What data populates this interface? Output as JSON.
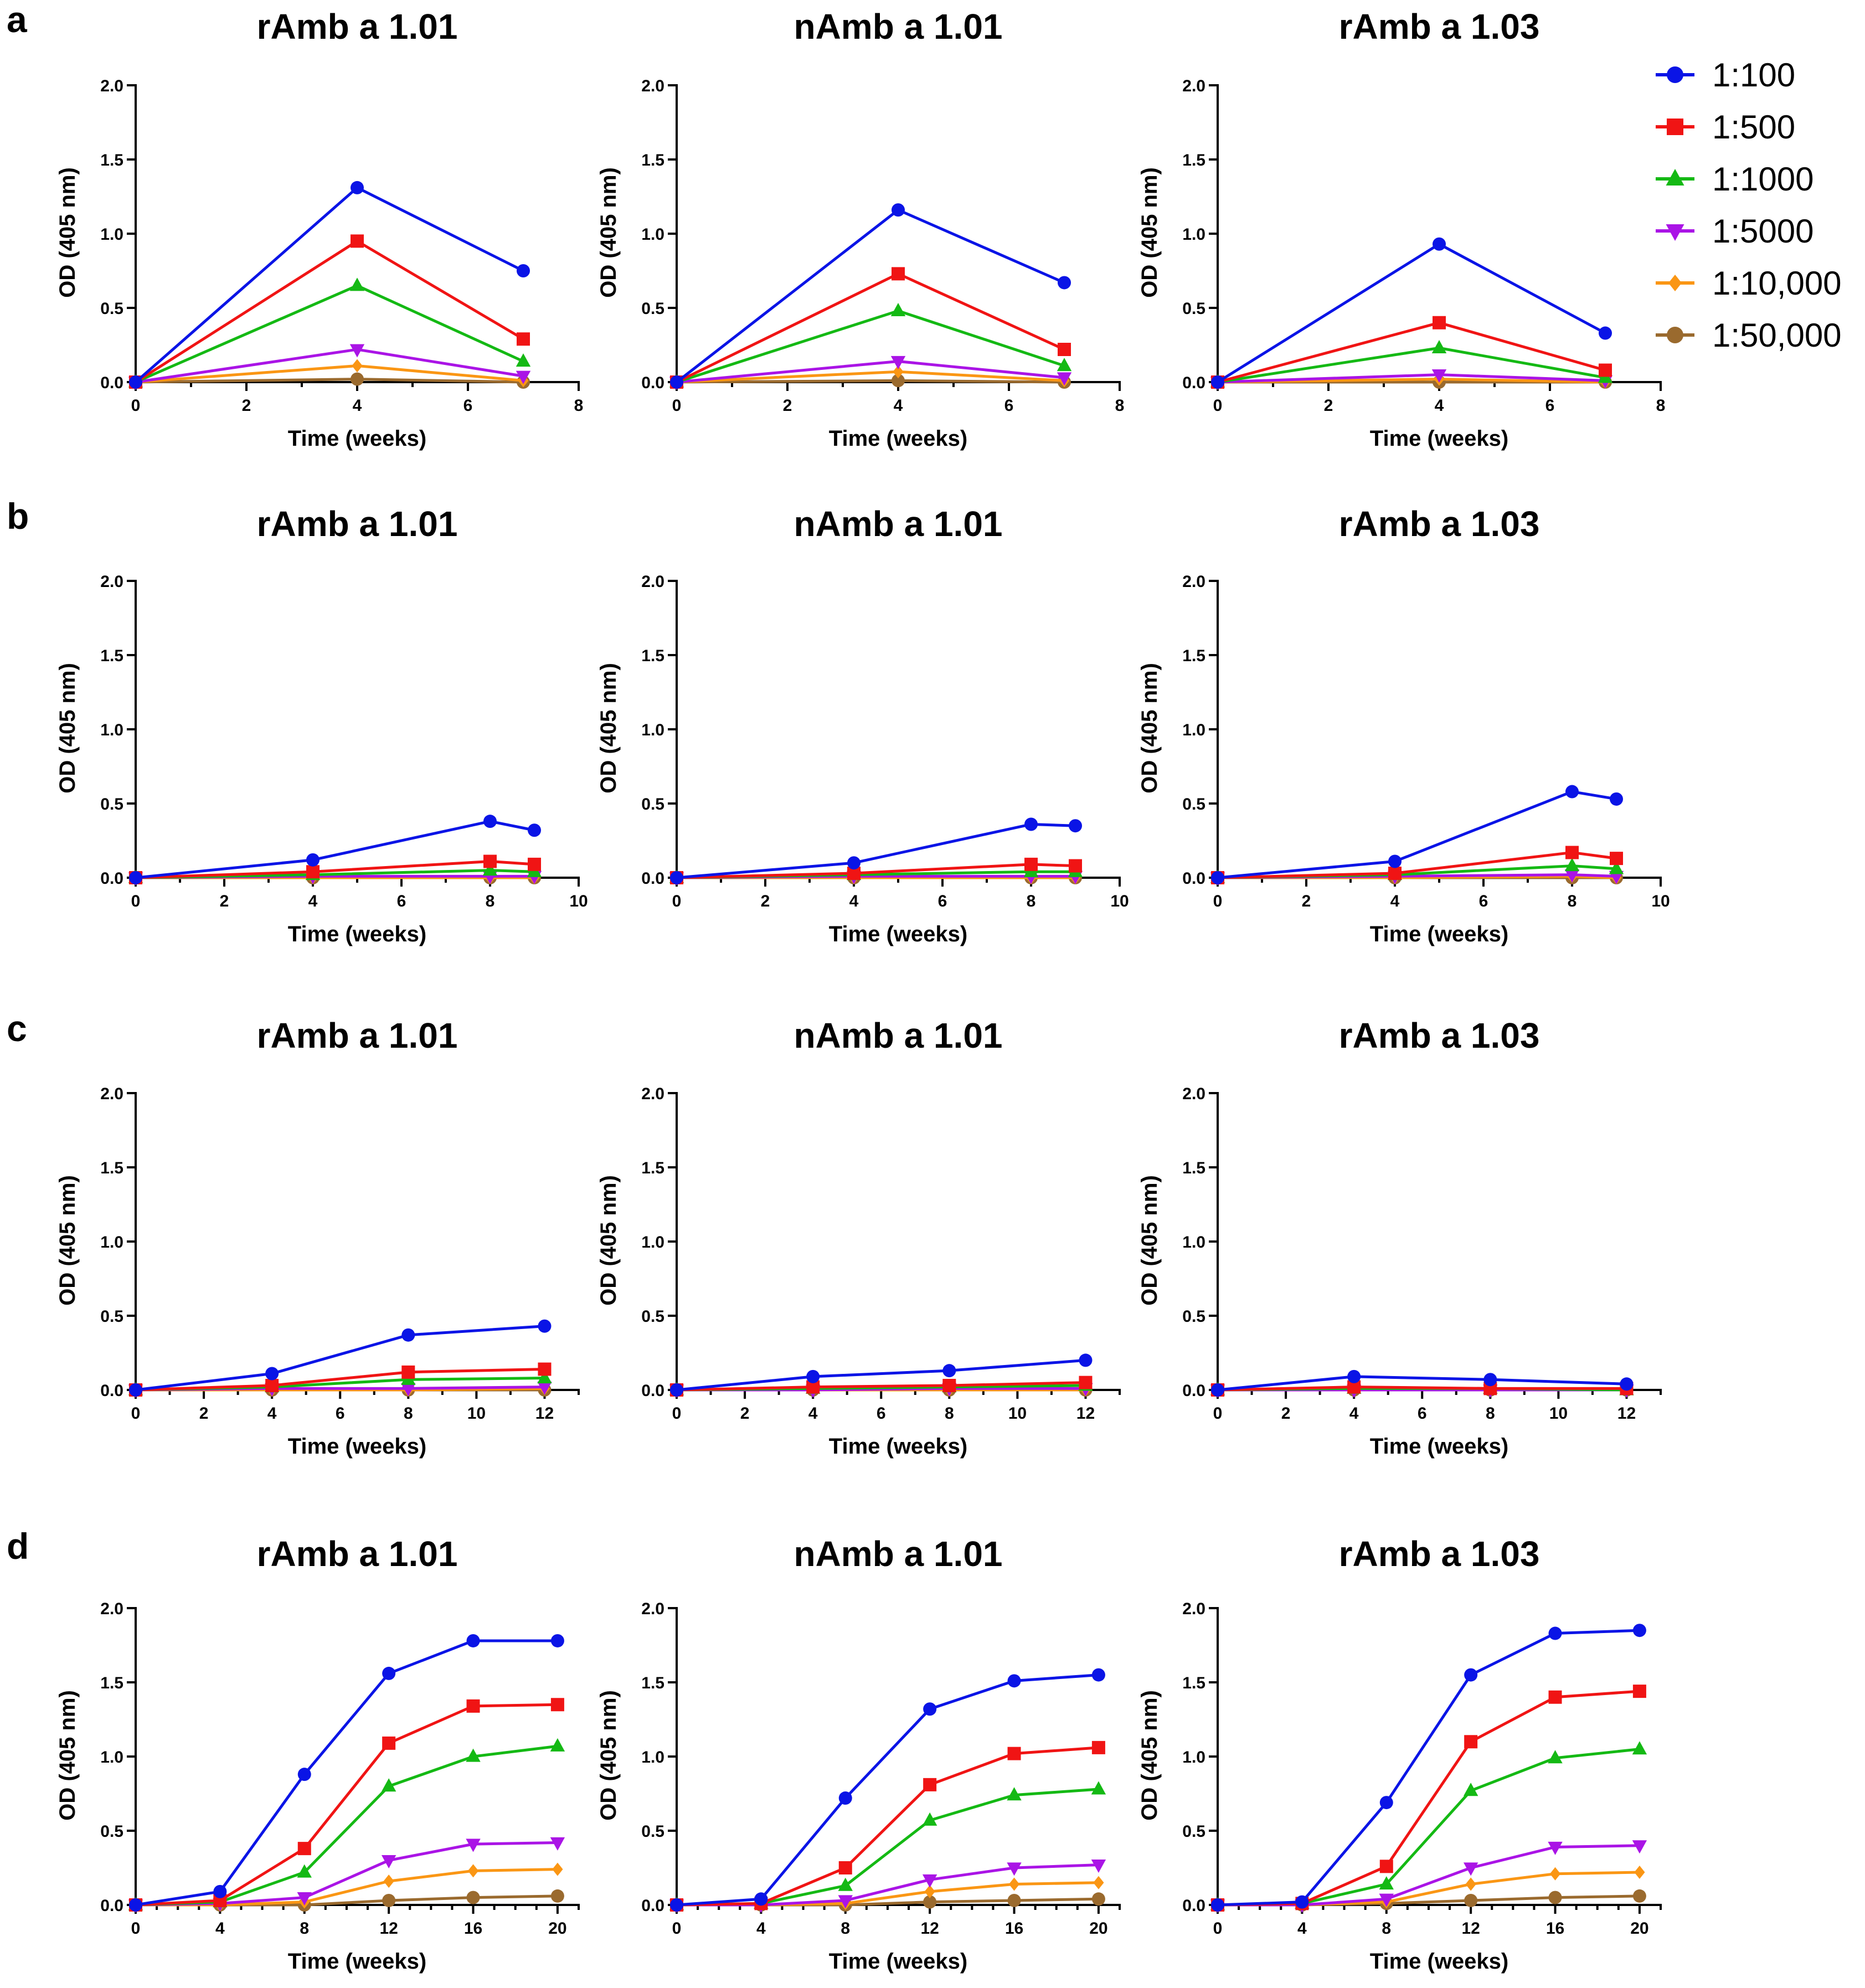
{
  "legend": {
    "entries": [
      {
        "label": "1:100",
        "color": "#0a14e6",
        "marker": "circle"
      },
      {
        "label": "1:500",
        "color": "#f01414",
        "marker": "square"
      },
      {
        "label": "1:1000",
        "color": "#14b914",
        "marker": "triangle-up"
      },
      {
        "label": "1:5000",
        "color": "#aa14e6",
        "marker": "triangle-down"
      },
      {
        "label": "1:10,000",
        "color": "#fa9614",
        "marker": "diamond"
      },
      {
        "label": "1:50,000",
        "color": "#9a6a2e",
        "marker": "circle"
      }
    ]
  },
  "rows": [
    {
      "letter": "a"
    },
    {
      "letter": "b"
    },
    {
      "letter": "c"
    },
    {
      "letter": "d"
    }
  ],
  "chart_data": [
    {
      "id": "a1",
      "row": "a",
      "type": "line",
      "title": "rAmb a 1.01",
      "xlabel": "Time (weeks)",
      "ylabel": "OD (405 nm)",
      "xlim": [
        0,
        8
      ],
      "xticks": [
        0,
        2,
        4,
        6,
        8
      ],
      "ylim": [
        0,
        2.0
      ],
      "yticks": [
        0.0,
        0.5,
        1.0,
        1.5,
        2.0
      ],
      "x": [
        0,
        4,
        7
      ],
      "series": [
        {
          "name": "1:100",
          "values": [
            0,
            1.31,
            0.75
          ]
        },
        {
          "name": "1:500",
          "values": [
            0,
            0.95,
            0.29
          ]
        },
        {
          "name": "1:1000",
          "values": [
            0,
            0.65,
            0.14
          ]
        },
        {
          "name": "1:5000",
          "values": [
            0,
            0.22,
            0.04
          ]
        },
        {
          "name": "1:10,000",
          "values": [
            0,
            0.11,
            0.01
          ]
        },
        {
          "name": "1:50,000",
          "values": [
            0,
            0.02,
            0.0
          ]
        }
      ]
    },
    {
      "id": "a2",
      "row": "a",
      "type": "line",
      "title": "nAmb a 1.01",
      "xlabel": "Time (weeks)",
      "ylabel": "OD (405 nm)",
      "xlim": [
        0,
        8
      ],
      "xticks": [
        0,
        2,
        4,
        6,
        8
      ],
      "ylim": [
        0,
        2.0
      ],
      "yticks": [
        0.0,
        0.5,
        1.0,
        1.5,
        2.0
      ],
      "x": [
        0,
        4,
        7
      ],
      "series": [
        {
          "name": "1:100",
          "values": [
            0,
            1.16,
            0.67
          ]
        },
        {
          "name": "1:500",
          "values": [
            0,
            0.73,
            0.22
          ]
        },
        {
          "name": "1:1000",
          "values": [
            0,
            0.48,
            0.11
          ]
        },
        {
          "name": "1:5000",
          "values": [
            0,
            0.14,
            0.03
          ]
        },
        {
          "name": "1:10,000",
          "values": [
            0,
            0.07,
            0.01
          ]
        },
        {
          "name": "1:50,000",
          "values": [
            0,
            0.01,
            0.0
          ]
        }
      ]
    },
    {
      "id": "a3",
      "row": "a",
      "type": "line",
      "title": "rAmb a 1.03",
      "xlabel": "Time (weeks)",
      "ylabel": "OD (405 nm)",
      "xlim": [
        0,
        8
      ],
      "xticks": [
        0,
        2,
        4,
        6,
        8
      ],
      "ylim": [
        0,
        2.0
      ],
      "yticks": [
        0.0,
        0.5,
        1.0,
        1.5,
        2.0
      ],
      "x": [
        0,
        4,
        7
      ],
      "series": [
        {
          "name": "1:100",
          "values": [
            0,
            0.93,
            0.33
          ]
        },
        {
          "name": "1:500",
          "values": [
            0,
            0.4,
            0.08
          ]
        },
        {
          "name": "1:1000",
          "values": [
            0,
            0.23,
            0.03
          ]
        },
        {
          "name": "1:5000",
          "values": [
            0,
            0.05,
            0.01
          ]
        },
        {
          "name": "1:10,000",
          "values": [
            0,
            0.02,
            0.0
          ]
        },
        {
          "name": "1:50,000",
          "values": [
            0,
            0.0,
            0.0
          ]
        }
      ]
    },
    {
      "id": "b1",
      "row": "b",
      "type": "line",
      "title": "rAmb a 1.01",
      "xlabel": "Time (weeks)",
      "ylabel": "OD (405 nm)",
      "xlim": [
        0,
        10
      ],
      "xticks": [
        0,
        2,
        4,
        6,
        8,
        10
      ],
      "ylim": [
        0,
        2.0
      ],
      "yticks": [
        0.0,
        0.5,
        1.0,
        1.5,
        2.0
      ],
      "x": [
        0,
        4,
        8,
        9
      ],
      "series": [
        {
          "name": "1:100",
          "values": [
            0,
            0.12,
            0.38,
            0.32
          ]
        },
        {
          "name": "1:500",
          "values": [
            0,
            0.04,
            0.11,
            0.09
          ]
        },
        {
          "name": "1:1000",
          "values": [
            0,
            0.02,
            0.05,
            0.04
          ]
        },
        {
          "name": "1:5000",
          "values": [
            0,
            0.01,
            0.01,
            0.01
          ]
        },
        {
          "name": "1:10,000",
          "values": [
            0,
            0.0,
            0.0,
            0.0
          ]
        },
        {
          "name": "1:50,000",
          "values": [
            0,
            0.0,
            0.0,
            0.0
          ]
        }
      ]
    },
    {
      "id": "b2",
      "row": "b",
      "type": "line",
      "title": "nAmb a 1.01",
      "xlabel": "Time (weeks)",
      "ylabel": "OD (405 nm)",
      "xlim": [
        0,
        10
      ],
      "xticks": [
        0,
        2,
        4,
        6,
        8,
        10
      ],
      "ylim": [
        0,
        2.0
      ],
      "yticks": [
        0.0,
        0.5,
        1.0,
        1.5,
        2.0
      ],
      "x": [
        0,
        4,
        8,
        9
      ],
      "series": [
        {
          "name": "1:100",
          "values": [
            0,
            0.1,
            0.36,
            0.35
          ]
        },
        {
          "name": "1:500",
          "values": [
            0,
            0.03,
            0.09,
            0.08
          ]
        },
        {
          "name": "1:1000",
          "values": [
            0,
            0.02,
            0.04,
            0.04
          ]
        },
        {
          "name": "1:5000",
          "values": [
            0,
            0.01,
            0.01,
            0.01
          ]
        },
        {
          "name": "1:10,000",
          "values": [
            0,
            0.0,
            0.0,
            0.0
          ]
        },
        {
          "name": "1:50,000",
          "values": [
            0,
            0.0,
            0.0,
            0.0
          ]
        }
      ]
    },
    {
      "id": "b3",
      "row": "b",
      "type": "line",
      "title": "rAmb a 1.03",
      "xlabel": "Time (weeks)",
      "ylabel": "OD (405 nm)",
      "xlim": [
        0,
        10
      ],
      "xticks": [
        0,
        2,
        4,
        6,
        8,
        10
      ],
      "ylim": [
        0,
        2.0
      ],
      "yticks": [
        0.0,
        0.5,
        1.0,
        1.5,
        2.0
      ],
      "x": [
        0,
        4,
        8,
        9
      ],
      "series": [
        {
          "name": "1:100",
          "values": [
            0,
            0.11,
            0.58,
            0.53
          ]
        },
        {
          "name": "1:500",
          "values": [
            0,
            0.03,
            0.17,
            0.13
          ]
        },
        {
          "name": "1:1000",
          "values": [
            0,
            0.02,
            0.08,
            0.06
          ]
        },
        {
          "name": "1:5000",
          "values": [
            0,
            0.01,
            0.02,
            0.01
          ]
        },
        {
          "name": "1:10,000",
          "values": [
            0,
            0.0,
            0.01,
            0.0
          ]
        },
        {
          "name": "1:50,000",
          "values": [
            0,
            0.0,
            0.0,
            0.0
          ]
        }
      ]
    },
    {
      "id": "c1",
      "row": "c",
      "type": "line",
      "title": "rAmb a 1.01",
      "xlabel": "Time (weeks)",
      "ylabel": "OD (405 nm)",
      "xlim": [
        0,
        13
      ],
      "xticks": [
        0,
        2,
        4,
        6,
        8,
        10,
        12
      ],
      "ylim": [
        0,
        2.0
      ],
      "yticks": [
        0.0,
        0.5,
        1.0,
        1.5,
        2.0
      ],
      "x": [
        0,
        4,
        8,
        12
      ],
      "series": [
        {
          "name": "1:100",
          "values": [
            0,
            0.11,
            0.37,
            0.43
          ]
        },
        {
          "name": "1:500",
          "values": [
            0,
            0.03,
            0.12,
            0.14
          ]
        },
        {
          "name": "1:1000",
          "values": [
            0,
            0.02,
            0.07,
            0.08
          ]
        },
        {
          "name": "1:5000",
          "values": [
            0,
            0.01,
            0.01,
            0.02
          ]
        },
        {
          "name": "1:10,000",
          "values": [
            0,
            0.0,
            0.0,
            0.01
          ]
        },
        {
          "name": "1:50,000",
          "values": [
            0,
            0.0,
            0.0,
            0.0
          ]
        }
      ]
    },
    {
      "id": "c2",
      "row": "c",
      "type": "line",
      "title": "nAmb a 1.01",
      "xlabel": "Time (weeks)",
      "ylabel": "OD (405 nm)",
      "xlim": [
        0,
        13
      ],
      "xticks": [
        0,
        2,
        4,
        6,
        8,
        10,
        12
      ],
      "ylim": [
        0,
        2.0
      ],
      "yticks": [
        0.0,
        0.5,
        1.0,
        1.5,
        2.0
      ],
      "x": [
        0,
        4,
        8,
        12
      ],
      "series": [
        {
          "name": "1:100",
          "values": [
            0,
            0.09,
            0.13,
            0.2
          ]
        },
        {
          "name": "1:500",
          "values": [
            0,
            0.02,
            0.03,
            0.05
          ]
        },
        {
          "name": "1:1000",
          "values": [
            0,
            0.01,
            0.02,
            0.03
          ]
        },
        {
          "name": "1:5000",
          "values": [
            0,
            0.0,
            0.01,
            0.01
          ]
        },
        {
          "name": "1:10,000",
          "values": [
            0,
            0.0,
            0.0,
            0.0
          ]
        },
        {
          "name": "1:50,000",
          "values": [
            0,
            0.0,
            0.0,
            0.0
          ]
        }
      ]
    },
    {
      "id": "c3",
      "row": "c",
      "type": "line",
      "title": "rAmb a 1.03",
      "xlabel": "Time (weeks)",
      "ylabel": "OD (405 nm)",
      "xlim": [
        0,
        13
      ],
      "xticks": [
        0,
        2,
        4,
        6,
        8,
        10,
        12
      ],
      "ylim": [
        0,
        2.0
      ],
      "yticks": [
        0.0,
        0.5,
        1.0,
        1.5,
        2.0
      ],
      "x": [
        0,
        4,
        8,
        12
      ],
      "series": [
        {
          "name": "1:100",
          "values": [
            0,
            0.09,
            0.07,
            0.04
          ]
        },
        {
          "name": "1:500",
          "values": [
            0,
            0.02,
            0.01,
            0.01
          ]
        },
        {
          "name": "1:1000",
          "values": [
            0,
            0.01,
            0.01,
            0.0
          ]
        },
        {
          "name": "1:5000",
          "values": [
            0,
            0.0,
            0.0,
            0.0
          ]
        },
        {
          "name": "1:10,000",
          "values": [
            0,
            0.0,
            0.0,
            0.0
          ]
        },
        {
          "name": "1:50,000",
          "values": [
            0,
            0.0,
            0.0,
            0.0
          ]
        }
      ]
    },
    {
      "id": "d1",
      "row": "d",
      "type": "line",
      "title": "rAmb a 1.01",
      "xlabel": "Time (weeks)",
      "ylabel": "OD (405 nm)",
      "xlim": [
        0,
        21
      ],
      "xticks": [
        0,
        4,
        8,
        12,
        16,
        20
      ],
      "ylim": [
        0,
        2.0
      ],
      "yticks": [
        0.0,
        0.5,
        1.0,
        1.5,
        2.0
      ],
      "x": [
        0,
        4,
        8,
        12,
        16,
        20
      ],
      "series": [
        {
          "name": "1:100",
          "values": [
            0,
            0.09,
            0.88,
            1.56,
            1.78,
            1.78
          ]
        },
        {
          "name": "1:500",
          "values": [
            0,
            0.03,
            0.38,
            1.09,
            1.34,
            1.35
          ]
        },
        {
          "name": "1:1000",
          "values": [
            0,
            0.02,
            0.22,
            0.8,
            1.0,
            1.07
          ]
        },
        {
          "name": "1:5000",
          "values": [
            0,
            0.01,
            0.05,
            0.3,
            0.41,
            0.42
          ]
        },
        {
          "name": "1:10,000",
          "values": [
            0,
            0.0,
            0.02,
            0.16,
            0.23,
            0.24
          ]
        },
        {
          "name": "1:50,000",
          "values": [
            0,
            0.0,
            0.0,
            0.03,
            0.05,
            0.06
          ]
        }
      ]
    },
    {
      "id": "d2",
      "row": "d",
      "type": "line",
      "title": "nAmb a 1.01",
      "xlabel": "Time (weeks)",
      "ylabel": "OD (405 nm)",
      "xlim": [
        0,
        21
      ],
      "xticks": [
        0,
        4,
        8,
        12,
        16,
        20
      ],
      "ylim": [
        0,
        2.0
      ],
      "yticks": [
        0.0,
        0.5,
        1.0,
        1.5,
        2.0
      ],
      "x": [
        0,
        4,
        8,
        12,
        16,
        20
      ],
      "series": [
        {
          "name": "1:100",
          "values": [
            0,
            0.04,
            0.72,
            1.32,
            1.51,
            1.55
          ]
        },
        {
          "name": "1:500",
          "values": [
            0,
            0.01,
            0.25,
            0.81,
            1.02,
            1.06
          ]
        },
        {
          "name": "1:1000",
          "values": [
            0,
            0.01,
            0.13,
            0.57,
            0.74,
            0.78
          ]
        },
        {
          "name": "1:5000",
          "values": [
            0,
            0.0,
            0.03,
            0.17,
            0.25,
            0.27
          ]
        },
        {
          "name": "1:10,000",
          "values": [
            0,
            0.0,
            0.01,
            0.09,
            0.14,
            0.15
          ]
        },
        {
          "name": "1:50,000",
          "values": [
            0,
            0.0,
            0.0,
            0.02,
            0.03,
            0.04
          ]
        }
      ]
    },
    {
      "id": "d3",
      "row": "d",
      "type": "line",
      "title": "rAmb a 1.03",
      "xlabel": "Time (weeks)",
      "ylabel": "OD (405 nm)",
      "xlim": [
        0,
        21
      ],
      "xticks": [
        0,
        4,
        8,
        12,
        16,
        20
      ],
      "ylim": [
        0,
        2.0
      ],
      "yticks": [
        0.0,
        0.5,
        1.0,
        1.5,
        2.0
      ],
      "x": [
        0,
        4,
        8,
        12,
        16,
        20
      ],
      "series": [
        {
          "name": "1:100",
          "values": [
            0,
            0.02,
            0.69,
            1.55,
            1.83,
            1.85
          ]
        },
        {
          "name": "1:500",
          "values": [
            0,
            0.01,
            0.26,
            1.1,
            1.4,
            1.44
          ]
        },
        {
          "name": "1:1000",
          "values": [
            0,
            0.01,
            0.14,
            0.77,
            0.99,
            1.05
          ]
        },
        {
          "name": "1:5000",
          "values": [
            0,
            0.0,
            0.04,
            0.25,
            0.39,
            0.4
          ]
        },
        {
          "name": "1:10,000",
          "values": [
            0,
            0.0,
            0.02,
            0.14,
            0.21,
            0.22
          ]
        },
        {
          "name": "1:50,000",
          "values": [
            0,
            0.0,
            0.01,
            0.03,
            0.05,
            0.06
          ]
        }
      ]
    }
  ]
}
